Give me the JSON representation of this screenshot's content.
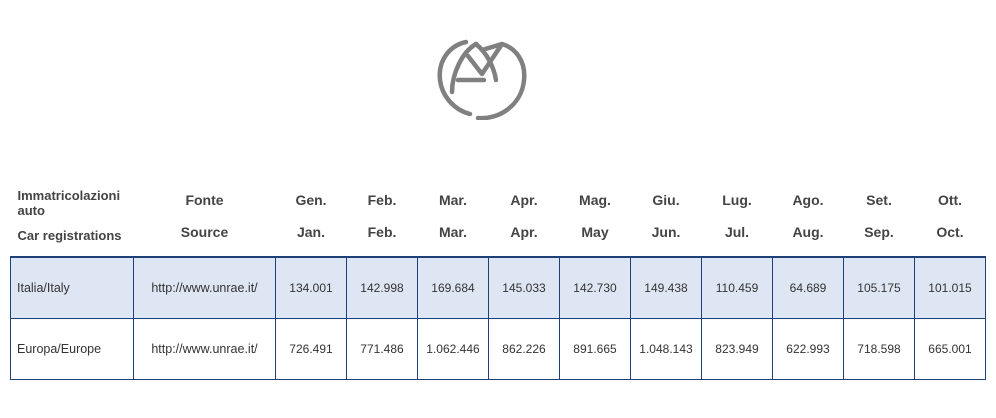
{
  "logo": {
    "icon": "unrae-logo-icon",
    "color": "#808080"
  },
  "table": {
    "header": {
      "first_top": "Immatricolazioni auto",
      "first_bottom": "Car registrations",
      "source_top": "Fonte",
      "source_bottom": "Source",
      "months": [
        {
          "it": "Gen.",
          "en": "Jan."
        },
        {
          "it": "Feb.",
          "en": "Feb."
        },
        {
          "it": "Mar.",
          "en": "Mar."
        },
        {
          "it": "Apr.",
          "en": "Apr."
        },
        {
          "it": "Mag.",
          "en": "May"
        },
        {
          "it": "Giu.",
          "en": "Jun."
        },
        {
          "it": "Lug.",
          "en": "Jul."
        },
        {
          "it": "Ago.",
          "en": "Aug."
        },
        {
          "it": "Set.",
          "en": "Sep."
        },
        {
          "it": "Ott.",
          "en": "Oct."
        }
      ]
    },
    "rows": [
      {
        "name": "Italia/Italy",
        "source": "http://www.unrae.it/",
        "values": [
          "134.001",
          "142.998",
          "169.684",
          "145.033",
          "142.730",
          "149.438",
          "110.459",
          "64.689",
          "105.175",
          "101.015"
        ]
      },
      {
        "name": "Europa/Europe",
        "source": "http://www.unrae.it/",
        "values": [
          "726.491",
          "771.486",
          "1.062.446",
          "862.226",
          "891.665",
          "1.048.143",
          "823.949",
          "622.993",
          "718.598",
          "665.001"
        ]
      }
    ],
    "colors": {
      "border": "#1f3f78",
      "highlight_row": "#dfe6f3"
    }
  }
}
